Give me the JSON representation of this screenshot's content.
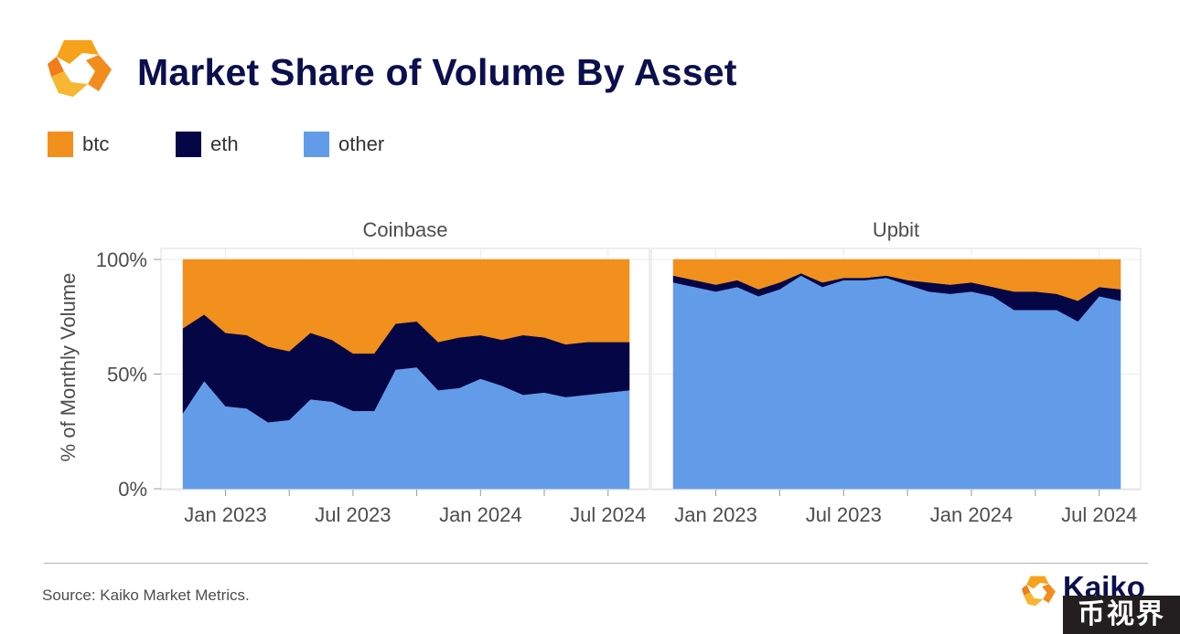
{
  "header": {
    "title": "Market Share of Volume By Asset"
  },
  "colors": {
    "btc": "#f1901c",
    "eth": "#050646",
    "other": "#629ce8",
    "panel_bg": "#ffffff",
    "grid": "#ebebeb",
    "frame": "#dcdcdc"
  },
  "legend": [
    {
      "label": "btc",
      "color": "#f1901c"
    },
    {
      "label": "eth",
      "color": "#050646"
    },
    {
      "label": "other",
      "color": "#629ce8"
    }
  ],
  "chart_data": {
    "type": "area",
    "stacked": true,
    "ylabel": "% of Monthly Volume",
    "ylim": [
      0,
      100
    ],
    "yticks": [
      "0%",
      "50%",
      "100%"
    ],
    "ytick_values": [
      0,
      50,
      100
    ],
    "x": [
      "2022-11",
      "2022-12",
      "2023-01",
      "2023-02",
      "2023-03",
      "2023-04",
      "2023-05",
      "2023-06",
      "2023-07",
      "2023-08",
      "2023-09",
      "2023-10",
      "2023-11",
      "2023-12",
      "2024-01",
      "2024-02",
      "2024-03",
      "2024-04",
      "2024-05",
      "2024-06",
      "2024-07",
      "2024-08"
    ],
    "xticks": [
      {
        "label": "Jan 2023",
        "month": 2
      },
      {
        "label": "Jul 2023",
        "month": 8
      },
      {
        "label": "Jan 2024",
        "month": 14
      },
      {
        "label": "Jul 2024",
        "month": 20
      }
    ],
    "series_order": [
      "other",
      "eth",
      "btc"
    ],
    "panels": [
      {
        "name": "Coinbase",
        "series": [
          {
            "name": "other",
            "values": [
              33,
              47,
              36,
              35,
              29,
              30,
              39,
              38,
              34,
              34,
              52,
              53,
              43,
              44,
              48,
              45,
              41,
              42,
              40,
              41,
              42,
              43
            ]
          },
          {
            "name": "eth",
            "values": [
              37,
              29,
              32,
              32,
              33,
              30,
              29,
              27,
              25,
              25,
              20,
              20,
              21,
              22,
              19,
              20,
              26,
              24,
              23,
              23,
              22,
              21
            ]
          },
          {
            "name": "btc",
            "values": [
              30,
              24,
              32,
              33,
              38,
              40,
              32,
              35,
              41,
              41,
              28,
              27,
              36,
              34,
              33,
              35,
              33,
              34,
              37,
              36,
              36,
              36
            ]
          }
        ]
      },
      {
        "name": "Upbit",
        "series": [
          {
            "name": "other",
            "values": [
              90,
              88,
              86,
              88,
              84,
              87,
              93,
              88,
              91,
              91,
              92,
              89,
              86,
              85,
              86,
              84,
              78,
              78,
              78,
              73,
              84,
              82
            ]
          },
          {
            "name": "eth",
            "values": [
              3,
              3,
              3,
              3,
              3,
              3,
              1,
              2,
              1,
              1,
              1,
              2,
              4,
              4,
              4,
              4,
              8,
              8,
              7,
              9,
              4,
              5
            ]
          },
          {
            "name": "btc",
            "values": [
              7,
              9,
              11,
              9,
              13,
              10,
              6,
              10,
              8,
              8,
              7,
              9,
              10,
              11,
              10,
              12,
              14,
              14,
              15,
              18,
              12,
              13
            ]
          }
        ]
      }
    ]
  },
  "footer": {
    "source": "Source: Kaiko Market Metrics.",
    "brand": "Kaiko",
    "watermark": "币视界"
  }
}
